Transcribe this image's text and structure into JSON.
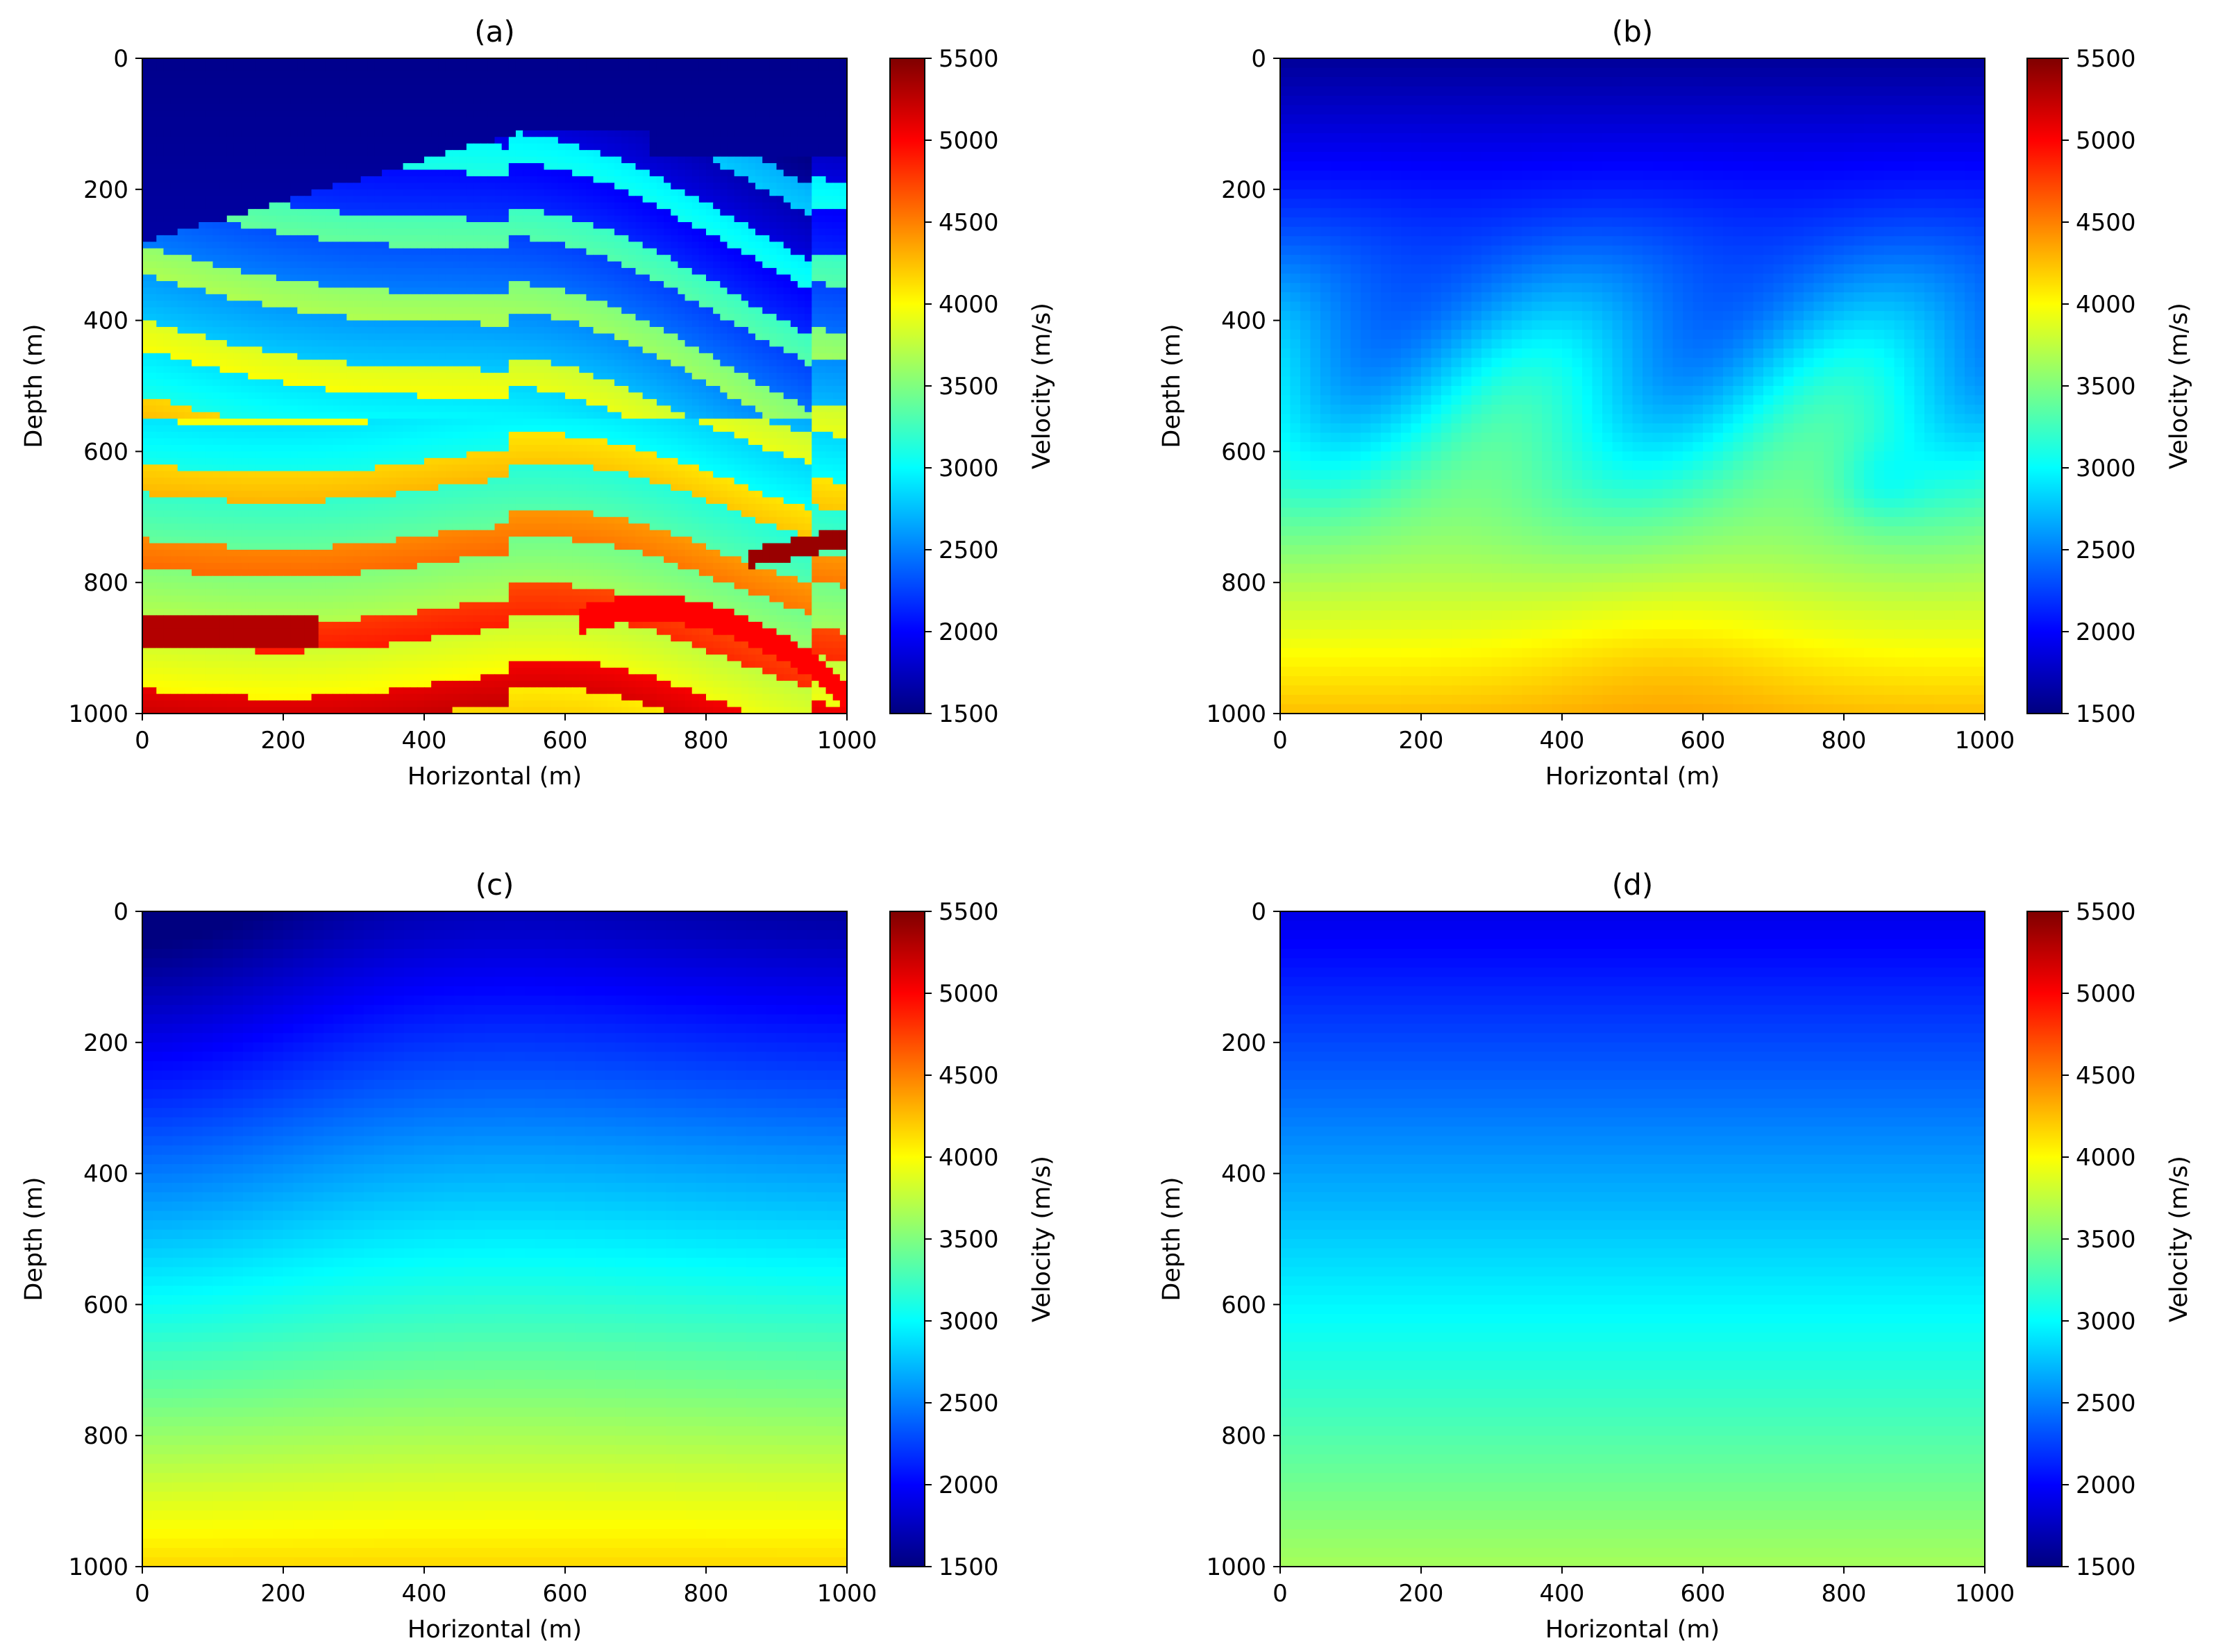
{
  "colors": {
    "colormap": "jet",
    "axes_frame": "#000000",
    "background": "#ffffff"
  },
  "chart_data": [
    {
      "type": "heatmap",
      "title": "(a)",
      "xlabel": "Horizontal (m)",
      "ylabel": "Depth (m)",
      "colorbar_label": "Velocity (m/s)",
      "xlim": [
        0,
        1000
      ],
      "ylim": [
        1000,
        0
      ],
      "x_ticks": [
        "0",
        "200",
        "400",
        "600",
        "800",
        "1000"
      ],
      "y_ticks": [
        "0",
        "200",
        "400",
        "600",
        "800",
        "1000"
      ],
      "clim": [
        1500,
        5500
      ],
      "colorbar_ticks": [
        "1500",
        "2000",
        "2500",
        "3000",
        "3500",
        "4000",
        "4500",
        "5000",
        "5500"
      ],
      "description_of_field": "layered folded/faulted velocity model (Marmousi-like), values 1500–5500 m/s"
    },
    {
      "type": "heatmap",
      "title": "(b)",
      "xlabel": "Horizontal (m)",
      "ylabel": "Depth (m)",
      "colorbar_label": "Velocity (m/s)",
      "xlim": [
        0,
        1000
      ],
      "ylim": [
        1000,
        0
      ],
      "x_ticks": [
        "0",
        "200",
        "400",
        "600",
        "800",
        "1000"
      ],
      "y_ticks": [
        "0",
        "200",
        "400",
        "600",
        "800",
        "1000"
      ],
      "clim": [
        1500,
        5500
      ],
      "colorbar_ticks": [
        "1500",
        "2000",
        "2500",
        "3000",
        "3500",
        "4000",
        "4500",
        "5000",
        "5500"
      ]
    },
    {
      "type": "heatmap",
      "title": "(c)",
      "xlabel": "Horizontal (m)",
      "ylabel": "Depth (m)",
      "colorbar_label": "Velocity (m/s)",
      "xlim": [
        0,
        1000
      ],
      "ylim": [
        1000,
        0
      ],
      "x_ticks": [
        "0",
        "200",
        "400",
        "600",
        "800",
        "1000"
      ],
      "y_ticks": [
        "0",
        "200",
        "400",
        "600",
        "800",
        "1000"
      ],
      "clim": [
        1500,
        5500
      ],
      "colorbar_ticks": [
        "1500",
        "2000",
        "2500",
        "3000",
        "3500",
        "4000",
        "4500",
        "5000",
        "5500"
      ]
    },
    {
      "type": "heatmap",
      "title": "(d)",
      "xlabel": "Horizontal (m)",
      "ylabel": "Depth (m)",
      "colorbar_label": "Velocity (m/s)",
      "xlim": [
        0,
        1000
      ],
      "ylim": [
        1000,
        0
      ],
      "x_ticks": [
        "0",
        "200",
        "400",
        "600",
        "800",
        "1000"
      ],
      "y_ticks": [
        "0",
        "200",
        "400",
        "600",
        "800",
        "1000"
      ],
      "clim": [
        1500,
        5500
      ],
      "colorbar_ticks": [
        "1500",
        "2000",
        "2500",
        "3000",
        "3500",
        "4000",
        "4500",
        "5000",
        "5500"
      ]
    }
  ]
}
